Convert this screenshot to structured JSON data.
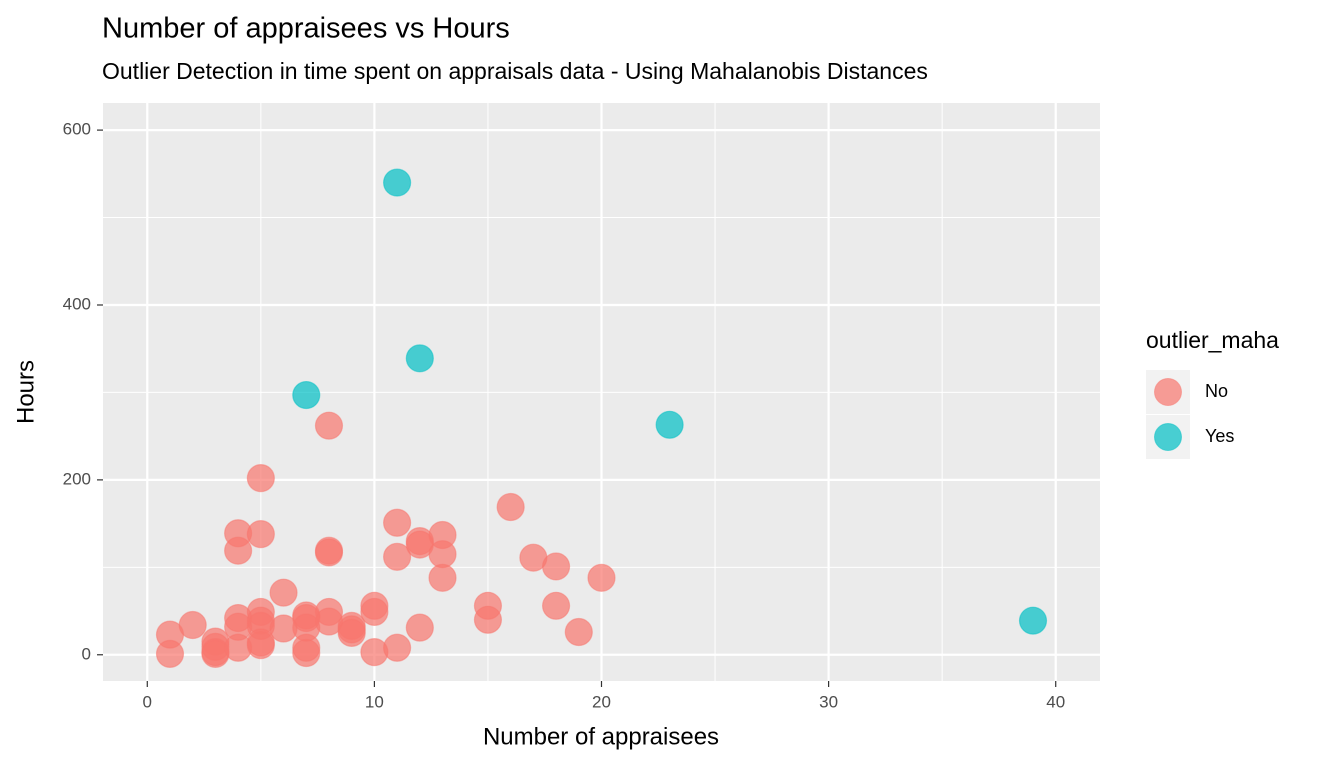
{
  "chart_data": {
    "type": "scatter",
    "title": "Number of appraisees vs Hours",
    "subtitle": "Outlier Detection in time spent on appraisals data - Using Mahalanobis Distances",
    "x_label": "Number of appraisees",
    "y_label": "Hours",
    "legend_title": "outlier_maha",
    "legend_position": "right",
    "grid": true,
    "xlim": [
      -1.95,
      41.95
    ],
    "xticks": [
      0,
      10,
      20,
      30,
      40
    ],
    "ylim": [
      -30,
      631
    ],
    "yticks": [
      0,
      200,
      400,
      600
    ],
    "series": [
      {
        "name": "No",
        "color": "#F8766D",
        "x": [
          8,
          5,
          16,
          11,
          4,
          5,
          13,
          12,
          12,
          8,
          8,
          4,
          13,
          11,
          17,
          18,
          13,
          20,
          6,
          15,
          18,
          10,
          10,
          5,
          8,
          7,
          7,
          4,
          15,
          8,
          5,
          5,
          4,
          7,
          12,
          9,
          9,
          9,
          6,
          19,
          2,
          1,
          3,
          3,
          3,
          3,
          5,
          5,
          4,
          7,
          7,
          1,
          10,
          11
        ],
        "y": [
          262,
          202,
          169,
          151,
          139,
          138,
          137,
          130,
          126,
          119,
          117,
          119,
          115,
          112,
          111,
          101,
          88,
          88,
          71,
          56,
          56,
          56,
          49,
          49,
          49,
          45,
          42,
          42,
          40,
          38,
          39,
          33,
          32,
          31,
          31,
          33,
          29,
          25,
          30,
          26,
          34,
          23,
          15,
          9,
          3,
          1,
          11,
          14,
          8,
          8,
          2,
          1,
          3,
          8
        ]
      },
      {
        "name": "Yes",
        "color": "#00BFC4",
        "x": [
          11,
          12,
          7,
          23,
          39
        ],
        "y": [
          540,
          339,
          297,
          263,
          39
        ]
      }
    ]
  }
}
